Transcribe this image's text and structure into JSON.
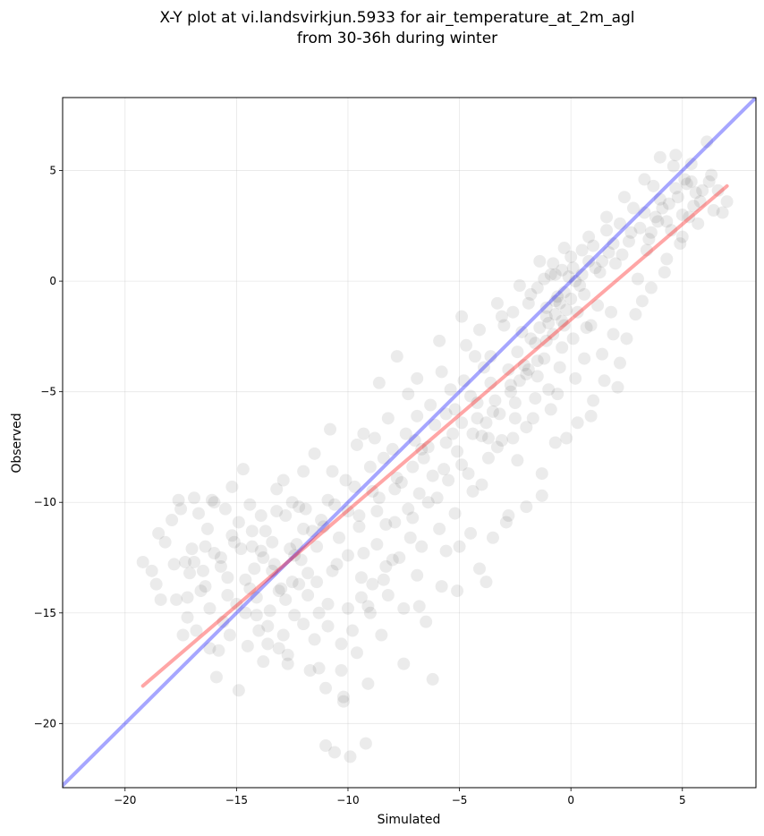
{
  "chart_data": {
    "type": "scatter",
    "title": "X-Y plot at vi.landsvirkjun.5933 for air_temperature_at_2m_agl",
    "subtitle": "from 30-36h during winter",
    "xlabel": "Simulated",
    "ylabel": "Observed",
    "xlim": [
      -22.8,
      8.3
    ],
    "ylim": [
      -22.9,
      8.3
    ],
    "xticks": [
      -20,
      -15,
      -10,
      -5,
      0,
      5
    ],
    "yticks": [
      -20,
      -15,
      -10,
      -5,
      0,
      5
    ],
    "xtick_labels": [
      "−20",
      "−15",
      "−10",
      "−5",
      "0",
      "5"
    ],
    "ytick_labels": [
      "−20",
      "−15",
      "−10",
      "−5",
      "0",
      "5"
    ],
    "grid": true,
    "point_color": "#000000",
    "point_alpha": 0.08,
    "lines": [
      {
        "type": "identity",
        "color": "#0000ff",
        "x": [
          -22.8,
          8.3
        ],
        "y": [
          -22.8,
          8.3
        ]
      },
      {
        "type": "regression",
        "color": "#ff0000",
        "x": [
          -19.2,
          7.0
        ],
        "y": [
          -18.3,
          4.3
        ]
      }
    ],
    "points": [
      [
        -19.2,
        -12.7
      ],
      [
        -18.8,
        -13.1
      ],
      [
        -18.5,
        -11.4
      ],
      [
        -18.4,
        -14.4
      ],
      [
        -17.8,
        -12.8
      ],
      [
        -17.6,
        -9.9
      ],
      [
        -17.3,
        -12.7
      ],
      [
        -17.2,
        -15.2
      ],
      [
        -16.9,
        -12.7
      ],
      [
        -16.7,
        -10.5
      ],
      [
        -16.4,
        -13.8
      ],
      [
        -16.2,
        -16.6
      ],
      [
        -16.0,
        -10.0
      ],
      [
        -15.9,
        -17.9
      ],
      [
        -15.7,
        -12.5
      ],
      [
        -15.4,
        -14.2
      ],
      [
        -15.2,
        -11.5
      ],
      [
        -14.9,
        -18.5
      ],
      [
        -14.7,
        -8.5
      ],
      [
        -14.6,
        -13.5
      ],
      [
        -14.3,
        -12.0
      ],
      [
        -14.1,
        -15.1
      ],
      [
        -13.9,
        -10.6
      ],
      [
        -13.6,
        -16.4
      ],
      [
        -13.4,
        -11.8
      ],
      [
        -13.1,
        -14.0
      ],
      [
        -12.9,
        -9.0
      ],
      [
        -12.7,
        -16.9
      ],
      [
        -12.4,
        -12.4
      ],
      [
        -12.2,
        -10.2
      ],
      [
        -12.0,
        -15.5
      ],
      [
        -11.8,
        -13.2
      ],
      [
        -11.5,
        -7.8
      ],
      [
        -11.3,
        -17.5
      ],
      [
        -11.1,
        -11.1
      ],
      [
        -10.9,
        -14.6
      ],
      [
        -10.7,
        -8.6
      ],
      [
        -10.5,
        -12.8
      ],
      [
        -10.2,
        -19.0
      ],
      [
        -10.0,
        -10.4
      ],
      [
        -9.8,
        -15.8
      ],
      [
        -9.6,
        -7.4
      ],
      [
        -9.4,
        -13.4
      ],
      [
        -9.1,
        -18.2
      ],
      [
        -8.9,
        -9.5
      ],
      [
        -8.7,
        -11.9
      ],
      [
        -8.5,
        -16.0
      ],
      [
        -8.2,
        -6.2
      ],
      [
        -8.0,
        -12.6
      ],
      [
        -7.8,
        -8.9
      ],
      [
        -7.5,
        -14.8
      ],
      [
        -7.3,
        -5.1
      ],
      [
        -7.1,
        -10.7
      ],
      [
        -6.9,
        -13.3
      ],
      [
        -6.7,
        -7.6
      ],
      [
        -6.5,
        -15.4
      ],
      [
        -6.2,
        -18.0
      ],
      [
        -6.0,
        -9.8
      ],
      [
        -5.8,
        -4.1
      ],
      [
        -5.6,
        -12.2
      ],
      [
        -5.3,
        -6.9
      ],
      [
        -5.1,
        -14.0
      ],
      [
        -4.9,
        -8.3
      ],
      [
        -4.7,
        -2.9
      ],
      [
        -4.5,
        -11.4
      ],
      [
        -4.2,
        -5.5
      ],
      [
        -4.0,
        -9.2
      ],
      [
        -3.8,
        -13.6
      ],
      [
        -3.6,
        -3.4
      ],
      [
        -3.3,
        -7.5
      ],
      [
        -3.1,
        -1.6
      ],
      [
        -2.9,
        -10.9
      ],
      [
        -2.7,
        -5.0
      ],
      [
        -2.4,
        -8.1
      ],
      [
        -2.2,
        -2.3
      ],
      [
        -2.0,
        -6.6
      ],
      [
        -1.8,
        -0.6
      ],
      [
        -1.5,
        -4.3
      ],
      [
        -1.3,
        -9.7
      ],
      [
        -1.1,
        -1.2
      ],
      [
        -0.9,
        -5.8
      ],
      [
        -0.7,
        0.3
      ],
      [
        -0.4,
        -3.0
      ],
      [
        -0.2,
        -7.1
      ],
      [
        0.0,
        -0.8
      ],
      [
        0.2,
        -4.4
      ],
      [
        0.5,
        1.4
      ],
      [
        0.7,
        -2.1
      ],
      [
        0.9,
        -6.1
      ],
      [
        1.1,
        0.6
      ],
      [
        1.4,
        -3.3
      ],
      [
        1.6,
        2.3
      ],
      [
        1.8,
        -1.4
      ],
      [
        2.1,
        -4.8
      ],
      [
        2.3,
        1.2
      ],
      [
        2.5,
        -2.6
      ],
      [
        2.8,
        3.3
      ],
      [
        3.0,
        0.1
      ],
      [
        3.2,
        -0.9
      ],
      [
        3.5,
        1.9
      ],
      [
        3.7,
        4.3
      ],
      [
        3.9,
        2.7
      ],
      [
        4.2,
        0.4
      ],
      [
        4.4,
        3.5
      ],
      [
        4.6,
        5.2
      ],
      [
        4.9,
        1.7
      ],
      [
        5.1,
        4.6
      ],
      [
        5.3,
        2.9
      ],
      [
        5.6,
        4.0
      ],
      [
        5.8,
        3.6
      ],
      [
        6.1,
        6.3
      ],
      [
        6.3,
        4.8
      ],
      [
        6.6,
        4.1
      ],
      [
        6.8,
        3.1
      ],
      [
        7.0,
        3.6
      ],
      [
        -15.2,
        -9.3
      ],
      [
        -13.8,
        -17.2
      ],
      [
        -12.5,
        -13.6
      ],
      [
        -11.0,
        -21.0
      ],
      [
        -10.6,
        -21.3
      ],
      [
        -9.9,
        -21.5
      ],
      [
        -9.2,
        -20.9
      ],
      [
        -10.2,
        -18.8
      ],
      [
        -11.7,
        -17.6
      ],
      [
        -12.9,
        -16.0
      ],
      [
        -9.0,
        -15.0
      ],
      [
        -8.2,
        -14.2
      ],
      [
        -7.5,
        -17.3
      ],
      [
        -6.8,
        -14.7
      ],
      [
        -5.8,
        -13.8
      ],
      [
        -5.0,
        -12.0
      ],
      [
        -4.1,
        -13.0
      ],
      [
        -3.5,
        -11.6
      ],
      [
        -2.8,
        -10.6
      ],
      [
        -2.0,
        -10.2
      ],
      [
        -1.3,
        -8.7
      ],
      [
        -0.7,
        -7.3
      ],
      [
        0.3,
        -6.4
      ],
      [
        1.0,
        -5.4
      ],
      [
        1.5,
        -4.5
      ],
      [
        2.2,
        -3.7
      ],
      [
        -1.5,
        -0.3
      ],
      [
        -0.9,
        0.3
      ],
      [
        -0.5,
        -1.0
      ],
      [
        -0.3,
        -0.5
      ],
      [
        0.1,
        0.6
      ],
      [
        0.3,
        -1.4
      ],
      [
        0.6,
        -0.6
      ],
      [
        0.9,
        -2.0
      ],
      [
        1.2,
        -1.1
      ],
      [
        -2.4,
        -3.2
      ],
      [
        -2.0,
        -4.2
      ],
      [
        -1.6,
        -2.8
      ],
      [
        -1.2,
        -3.5
      ],
      [
        -0.8,
        -2.4
      ],
      [
        -0.4,
        -1.8
      ],
      [
        -3.6,
        -4.6
      ],
      [
        -3.2,
        -6.0
      ],
      [
        -2.8,
        -4.0
      ],
      [
        -2.5,
        -5.5
      ],
      [
        -4.5,
        -5.2
      ],
      [
        -4.0,
        -7.0
      ],
      [
        -5.2,
        -5.8
      ],
      [
        -5.6,
        -7.3
      ],
      [
        -6.1,
        -6.5
      ],
      [
        -6.6,
        -8.0
      ],
      [
        -7.0,
        -7.2
      ],
      [
        -7.6,
        -9.1
      ],
      [
        -8.0,
        -7.6
      ],
      [
        -8.6,
        -9.8
      ],
      [
        -9.0,
        -8.4
      ],
      [
        -9.5,
        -10.6
      ],
      [
        -10.1,
        -9.0
      ],
      [
        -10.4,
        -11.6
      ],
      [
        -10.9,
        -9.9
      ],
      [
        -11.4,
        -12.0
      ],
      [
        -11.9,
        -10.3
      ],
      [
        -12.3,
        -11.9
      ],
      [
        -12.8,
        -10.6
      ],
      [
        -13.3,
        -12.8
      ],
      [
        -13.7,
        -11.3
      ],
      [
        -14.2,
        -13.0
      ],
      [
        -14.8,
        -12.1
      ],
      [
        -15.4,
        -13.4
      ],
      [
        -16.0,
        -12.3
      ],
      [
        -16.6,
        -14.0
      ],
      [
        -17.1,
        -13.2
      ],
      [
        -17.7,
        -14.4
      ],
      [
        -0.2,
        -1.3
      ],
      [
        -0.6,
        -0.7
      ],
      [
        -1.0,
        -1.9
      ],
      [
        0.4,
        -0.2
      ],
      [
        0.8,
        0.9
      ],
      [
        1.3,
        0.4
      ],
      [
        1.7,
        1.3
      ],
      [
        2.0,
        0.8
      ],
      [
        2.6,
        1.8
      ],
      [
        3.1,
        2.4
      ],
      [
        3.4,
        1.4
      ],
      [
        3.8,
        2.9
      ],
      [
        4.1,
        3.3
      ],
      [
        4.5,
        2.3
      ],
      [
        4.8,
        3.8
      ],
      [
        5.2,
        4.4
      ],
      [
        5.5,
        3.4
      ],
      [
        -3.0,
        -2.0
      ],
      [
        -2.6,
        -1.4
      ],
      [
        -1.9,
        -1.0
      ],
      [
        -3.9,
        -3.9
      ],
      [
        -4.3,
        -3.4
      ],
      [
        -4.8,
        -4.5
      ],
      [
        -5.4,
        -4.9
      ],
      [
        -6.3,
        -5.6
      ],
      [
        -6.9,
        -6.1
      ],
      [
        -7.4,
        -6.9
      ],
      [
        -8.4,
        -8.0
      ],
      [
        -8.8,
        -7.1
      ],
      [
        -9.7,
        -9.3
      ],
      [
        -10.6,
        -10.1
      ],
      [
        -11.2,
        -10.8
      ],
      [
        -11.6,
        -11.3
      ],
      [
        -12.1,
        -12.6
      ],
      [
        -12.6,
        -12.1
      ],
      [
        -13.0,
        -13.9
      ],
      [
        -13.5,
        -14.9
      ],
      [
        -14.0,
        -15.8
      ],
      [
        -14.5,
        -16.5
      ],
      [
        -15.0,
        -14.6
      ],
      [
        -15.6,
        -15.4
      ],
      [
        -16.2,
        -14.8
      ],
      [
        -16.8,
        -15.8
      ],
      [
        -17.4,
        -16.0
      ],
      [
        -9.3,
        -12.3
      ],
      [
        -8.3,
        -11.0
      ],
      [
        -7.2,
        -11.6
      ],
      [
        -6.4,
        -10.0
      ],
      [
        -5.5,
        -9.0
      ],
      [
        -4.6,
        -8.7
      ],
      [
        -3.7,
        -8.0
      ],
      [
        -2.6,
        -7.1
      ],
      [
        -1.7,
        -6.2
      ],
      [
        -0.6,
        -5.1
      ],
      [
        0.6,
        -3.5
      ],
      [
        1.9,
        -2.4
      ],
      [
        2.9,
        -1.5
      ],
      [
        3.6,
        -0.3
      ],
      [
        4.3,
        1.0
      ],
      [
        5.0,
        2.0
      ],
      [
        5.7,
        2.6
      ],
      [
        6.4,
        3.2
      ],
      [
        -18.2,
        -11.8
      ],
      [
        -17.5,
        -10.3
      ],
      [
        -16.3,
        -11.2
      ],
      [
        -14.4,
        -10.1
      ],
      [
        -13.2,
        -9.4
      ],
      [
        -12.0,
        -8.6
      ],
      [
        -10.8,
        -6.7
      ],
      [
        -9.3,
        -6.9
      ],
      [
        -8.6,
        -4.6
      ],
      [
        -7.8,
        -3.4
      ],
      [
        -6.9,
        -4.4
      ],
      [
        -5.9,
        -2.7
      ],
      [
        -4.9,
        -1.6
      ],
      [
        -4.1,
        -2.2
      ],
      [
        -3.3,
        -1.0
      ],
      [
        -2.3,
        -0.2
      ],
      [
        -1.4,
        0.9
      ],
      [
        -0.3,
        1.5
      ],
      [
        0.8,
        2.0
      ],
      [
        1.6,
        2.9
      ],
      [
        2.4,
        3.8
      ],
      [
        3.3,
        4.6
      ],
      [
        4.0,
        5.6
      ],
      [
        4.7,
        5.7
      ],
      [
        5.4,
        5.3
      ],
      [
        -0.1,
        0.2
      ],
      [
        -0.4,
        0.5
      ],
      [
        0.2,
        0.0
      ],
      [
        -0.7,
        -0.9
      ],
      [
        -1.1,
        -1.6
      ],
      [
        -1.4,
        -2.1
      ],
      [
        -1.8,
        -2.6
      ],
      [
        -2.1,
        -3.8
      ],
      [
        -2.3,
        -4.5
      ],
      [
        -3.4,
        -5.4
      ],
      [
        -3.8,
        -6.4
      ],
      [
        -4.4,
        -6.9
      ],
      [
        -5.1,
        -7.7
      ],
      [
        -5.7,
        -8.5
      ],
      [
        -6.2,
        -8.8
      ],
      [
        -6.8,
        -9.6
      ],
      [
        -7.3,
        -10.3
      ],
      [
        -7.9,
        -10.9
      ],
      [
        -8.3,
        -12.9
      ],
      [
        -8.9,
        -13.7
      ],
      [
        -9.4,
        -14.3
      ],
      [
        -10.0,
        -14.8
      ],
      [
        -10.3,
        -16.4
      ],
      [
        -10.9,
        -15.6
      ],
      [
        -11.3,
        -15.0
      ],
      [
        -11.8,
        -14.2
      ],
      [
        -12.4,
        -15.1
      ],
      [
        -12.7,
        -17.3
      ],
      [
        -13.1,
        -16.6
      ],
      [
        -13.6,
        -15.6
      ],
      [
        -14.1,
        -14.3
      ],
      [
        -14.6,
        -15.0
      ],
      [
        -15.3,
        -16.0
      ],
      [
        -15.8,
        -16.7
      ],
      [
        -16.5,
        -13.1
      ],
      [
        -17.0,
        -12.1
      ],
      [
        -17.9,
        -10.8
      ],
      [
        -18.6,
        -13.7
      ],
      [
        -1.2,
        0.1
      ],
      [
        -0.8,
        0.8
      ],
      [
        0.0,
        1.1
      ],
      [
        0.5,
        0.3
      ],
      [
        1.0,
        1.6
      ],
      [
        1.4,
        0.9
      ],
      [
        1.9,
        1.7
      ],
      [
        2.2,
        2.6
      ],
      [
        2.7,
        2.2
      ],
      [
        3.3,
        3.1
      ],
      [
        3.6,
        2.2
      ],
      [
        4.0,
        3.7
      ],
      [
        4.3,
        2.7
      ],
      [
        4.7,
        4.2
      ],
      [
        5.0,
        3.0
      ],
      [
        5.4,
        4.5
      ],
      [
        5.9,
        4.1
      ],
      [
        6.2,
        4.5
      ],
      [
        0.1,
        -2.6
      ],
      [
        -0.5,
        -3.9
      ],
      [
        -1.0,
        -4.9
      ],
      [
        -1.6,
        -5.3
      ],
      [
        -2.5,
        -6.2
      ],
      [
        -3.1,
        -7.2
      ],
      [
        -3.7,
        -7.1
      ],
      [
        -4.4,
        -9.5
      ],
      [
        -5.2,
        -10.5
      ],
      [
        -5.9,
        -11.2
      ],
      [
        -6.7,
        -12.0
      ],
      [
        -7.7,
        -12.5
      ],
      [
        -8.4,
        -13.5
      ],
      [
        -9.1,
        -14.7
      ],
      [
        -9.6,
        -16.8
      ],
      [
        -10.3,
        -17.6
      ],
      [
        -11.0,
        -18.4
      ],
      [
        -11.5,
        -16.2
      ],
      [
        -12.2,
        -13.7
      ],
      [
        -12.8,
        -14.4
      ],
      [
        -13.4,
        -13.1
      ],
      [
        -13.9,
        -12.2
      ],
      [
        -14.3,
        -11.3
      ],
      [
        -14.9,
        -10.9
      ],
      [
        -15.5,
        -10.3
      ],
      [
        -16.1,
        -9.9
      ],
      [
        -16.9,
        -9.8
      ],
      [
        -0.3,
        -2.0
      ],
      [
        -0.7,
        -1.5
      ],
      [
        -1.1,
        -2.7
      ],
      [
        -1.5,
        -3.6
      ],
      [
        -1.9,
        -4.0
      ],
      [
        -2.7,
        -4.7
      ],
      [
        -3.5,
        -5.9
      ],
      [
        -4.2,
        -6.2
      ],
      [
        -4.9,
        -6.4
      ],
      [
        -5.6,
        -6.0
      ],
      [
        -6.4,
        -7.5
      ],
      [
        -7.1,
        -8.4
      ],
      [
        -7.9,
        -9.4
      ],
      [
        -8.7,
        -10.4
      ],
      [
        -9.5,
        -11.1
      ],
      [
        -10.0,
        -12.4
      ],
      [
        -10.7,
        -13.1
      ],
      [
        -11.4,
        -13.6
      ],
      [
        -12.0,
        -11.2
      ],
      [
        -12.5,
        -10.0
      ],
      [
        -13.2,
        -10.4
      ],
      [
        -13.8,
        -12.5
      ],
      [
        -14.4,
        -13.9
      ],
      [
        -15.1,
        -11.8
      ],
      [
        -15.7,
        -12.9
      ],
      [
        -16.4,
        -12.0
      ],
      [
        -17.2,
        -14.3
      ]
    ]
  },
  "labels": {
    "title_line1": "X-Y plot at vi.landsvirkjun.5933 for air_temperature_at_2m_agl",
    "title_line2": "from 30-36h during winter",
    "xlabel": "Simulated",
    "ylabel": "Observed"
  }
}
